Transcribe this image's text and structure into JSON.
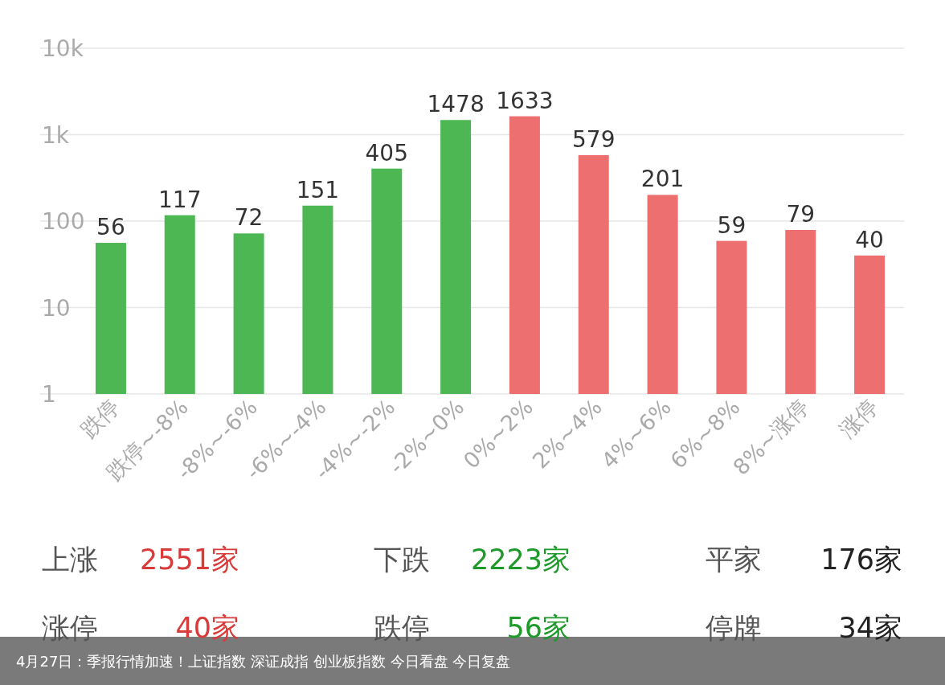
{
  "chart_data": [
    {
      "type": "bar",
      "categories": [
        "跌停",
        "跌停~-8%",
        "-8%~-6%",
        "-6%~-4%",
        "-4%~-2%",
        "-2%~0%",
        "0%~2%",
        "2%~4%",
        "4%~6%",
        "6%~8%",
        "8%~涨停",
        "涨停"
      ],
      "values": [
        56,
        117,
        72,
        151,
        405,
        1478,
        1633,
        579,
        201,
        59,
        79,
        40
      ],
      "colors": [
        "#4cb753",
        "#4cb753",
        "#4cb753",
        "#4cb753",
        "#4cb753",
        "#4cb753",
        "#ee6f6f",
        "#ee6f6f",
        "#ee6f6f",
        "#ee6f6f",
        "#ee6f6f",
        "#ee6f6f"
      ],
      "log": true,
      "ylim": [
        1,
        10000
      ],
      "yticks": [
        1,
        10,
        100,
        {
          "value": 1000,
          "label": "1k"
        },
        {
          "value": 10000,
          "label": "10k"
        }
      ],
      "grid": "y",
      "data_labels": true,
      "annotations": [
        "4月27日：季报行情加速！上证指数  深证成指  创业板指数  今日看盘  今日复盘"
      ]
    },
    {
      "type": "other",
      "annotations": [
        "上涨",
        "2551家",
        "下跌",
        "2223家",
        "平家",
        "176家",
        "涨停",
        "40家",
        "跌停",
        "56家",
        "停牌",
        "34家"
      ],
      "colors": [
        "#555555",
        "#d93a3a",
        "#555555",
        "#1e9a2a",
        "#555555",
        "#222222",
        "#555555",
        "#d93a3a",
        "#555555",
        "#1e9a2a",
        "#555555",
        "#222222"
      ]
    }
  ]
}
